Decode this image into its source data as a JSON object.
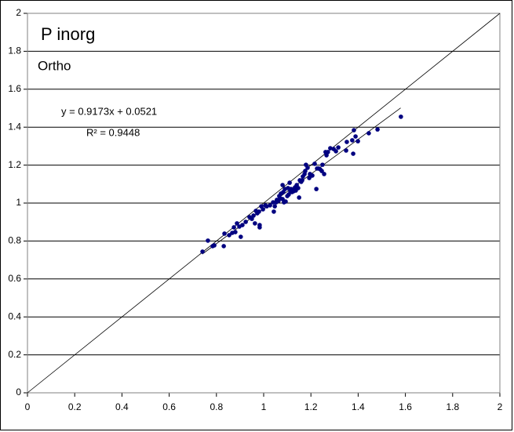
{
  "chart_data": {
    "type": "scatter",
    "title": "P inorg",
    "subtitle": "Ortho",
    "annotations": [
      "y = 0.9173x + 0.0521",
      "R² = 0.9448"
    ],
    "trendline": {
      "slope": 0.9173,
      "intercept": 0.0521,
      "x": [
        0.74,
        1.58
      ]
    },
    "identity_line": true,
    "series": [
      {
        "color": "#000080",
        "x": [
          0.741,
          0.764,
          0.784,
          0.791,
          0.831,
          0.834,
          0.854,
          0.867,
          0.874,
          0.88,
          0.887,
          0.897,
          0.903,
          0.91,
          0.924,
          0.94,
          0.95,
          0.957,
          0.963,
          0.967,
          0.973,
          0.98,
          0.983,
          0.983,
          0.99,
          0.997,
          1.007,
          1.013,
          1.027,
          1.04,
          1.043,
          1.047,
          1.053,
          1.056,
          1.063,
          1.066,
          1.07,
          1.073,
          1.08,
          1.08,
          1.083,
          1.086,
          1.09,
          1.093,
          1.1,
          1.103,
          1.106,
          1.11,
          1.113,
          1.116,
          1.12,
          1.126,
          1.13,
          1.133,
          1.136,
          1.14,
          1.146,
          1.15,
          1.153,
          1.159,
          1.163,
          1.166,
          1.173,
          1.176,
          1.179,
          1.186,
          1.193,
          1.196,
          1.203,
          1.206,
          1.216,
          1.223,
          1.226,
          1.233,
          1.239,
          1.246,
          1.249,
          1.256,
          1.262,
          1.266,
          1.272,
          1.282,
          1.296,
          1.306,
          1.316,
          1.349,
          1.352,
          1.375,
          1.379,
          1.382,
          1.389,
          1.399,
          1.445,
          1.482,
          1.581
        ],
        "values": [
          0.744,
          0.802,
          0.773,
          0.777,
          0.773,
          0.839,
          0.831,
          0.843,
          0.872,
          0.847,
          0.893,
          0.876,
          0.822,
          0.884,
          0.901,
          0.926,
          0.917,
          0.934,
          0.893,
          0.959,
          0.946,
          0.955,
          0.884,
          0.872,
          0.983,
          0.967,
          0.988,
          0.983,
          0.988,
          1.004,
          0.955,
          0.983,
          1.004,
          1.017,
          1.012,
          1.037,
          1.025,
          1.05,
          1.095,
          1.021,
          1.058,
          1.004,
          1.074,
          1.008,
          1.037,
          1.079,
          1.045,
          1.107,
          1.062,
          1.074,
          1.058,
          1.062,
          1.07,
          1.083,
          1.066,
          1.095,
          1.079,
          1.029,
          1.12,
          1.112,
          1.12,
          1.14,
          1.153,
          1.169,
          1.202,
          1.186,
          1.132,
          1.153,
          1.145,
          1.145,
          1.207,
          1.074,
          1.182,
          1.182,
          1.178,
          1.169,
          1.202,
          1.153,
          1.269,
          1.252,
          1.269,
          1.289,
          1.285,
          1.273,
          1.293,
          1.277,
          1.322,
          1.331,
          1.26,
          1.384,
          1.351,
          1.326,
          1.368,
          1.388,
          1.455
        ]
      }
    ],
    "xlim": [
      0,
      2
    ],
    "ylim": [
      0,
      2
    ],
    "xticks": [
      0,
      0.2,
      0.4,
      0.6,
      0.8,
      1,
      1.2,
      1.4,
      1.6,
      1.8,
      2
    ],
    "yticks": [
      0,
      0.2,
      0.4,
      0.6,
      0.8,
      1,
      1.2,
      1.4,
      1.6,
      1.8,
      2
    ],
    "grid": true
  }
}
